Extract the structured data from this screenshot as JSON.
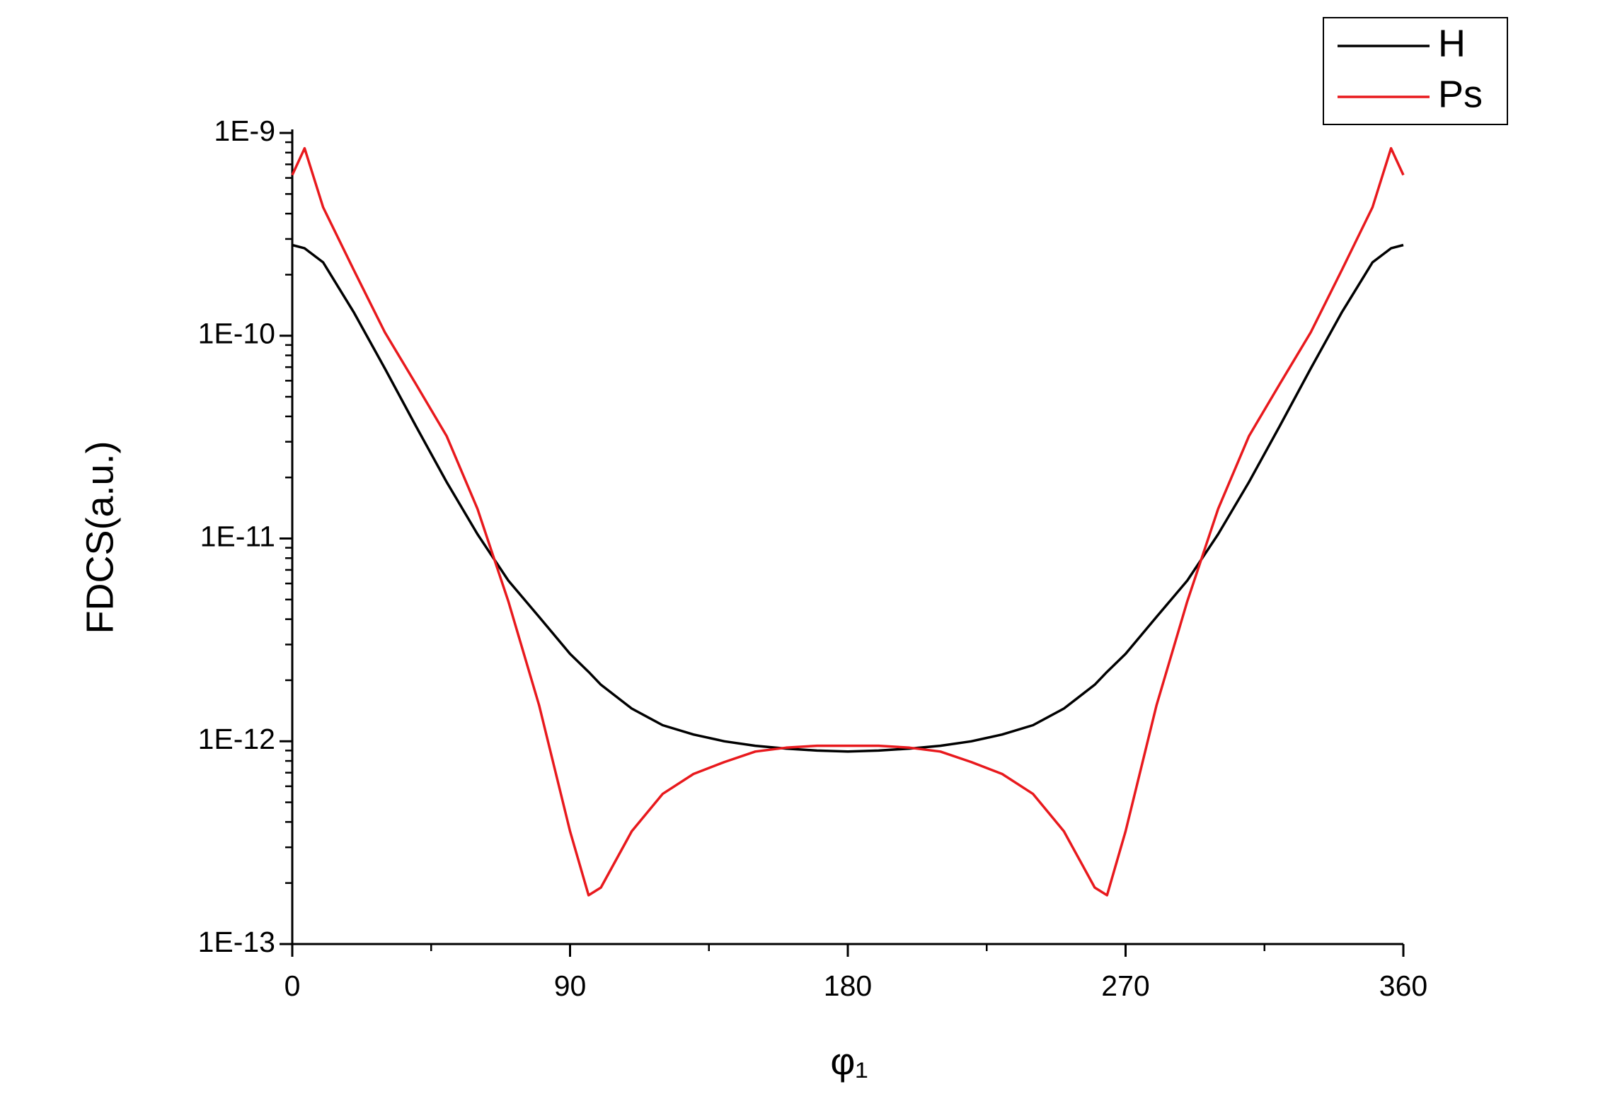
{
  "chart_data": {
    "type": "line",
    "xlabel": "φ₁",
    "ylabel": "FDCS(a.u.)",
    "x": [
      0,
      4,
      10,
      20,
      30,
      40,
      50,
      60,
      70,
      80,
      90,
      96,
      100,
      110,
      120,
      130,
      140,
      150,
      160,
      170,
      180,
      190,
      200,
      210,
      220,
      230,
      240,
      250,
      260,
      264,
      270,
      280,
      290,
      300,
      310,
      320,
      330,
      340,
      350,
      356,
      360
    ],
    "series": [
      {
        "name": "H",
        "color": "#000000",
        "values": [
          2.8e-10,
          2.7e-10,
          2.3e-10,
          1.3e-10,
          6.9e-11,
          3.6e-11,
          1.9e-11,
          1.05e-11,
          6.2e-12,
          4.1e-12,
          2.7e-12,
          2.2e-12,
          1.9e-12,
          1.45e-12,
          1.2e-12,
          1.08e-12,
          1e-12,
          9.5e-13,
          9.2e-13,
          9e-13,
          8.9e-13,
          9e-13,
          9.2e-13,
          9.5e-13,
          1e-12,
          1.08e-12,
          1.2e-12,
          1.45e-12,
          1.9e-12,
          2.2e-12,
          2.7e-12,
          4.1e-12,
          6.2e-12,
          1.05e-11,
          1.9e-11,
          3.6e-11,
          6.9e-11,
          1.3e-10,
          2.3e-10,
          2.7e-10,
          2.8e-10
        ]
      },
      {
        "name": "Ps",
        "color": "#e8191d",
        "values": [
          6.2e-10,
          8.4e-10,
          4.3e-10,
          2.1e-10,
          1.04e-10,
          5.8e-11,
          3.2e-11,
          1.4e-11,
          4.9e-12,
          1.5e-12,
          3.6e-13,
          1.74e-13,
          1.9e-13,
          3.6e-13,
          5.5e-13,
          6.9e-13,
          7.9e-13,
          8.9e-13,
          9.3e-13,
          9.5e-13,
          9.5e-13,
          9.5e-13,
          9.3e-13,
          8.9e-13,
          7.9e-13,
          6.9e-13,
          5.5e-13,
          3.6e-13,
          1.9e-13,
          1.74e-13,
          3.6e-13,
          1.5e-12,
          4.9e-12,
          1.4e-11,
          3.2e-11,
          5.8e-11,
          1.04e-10,
          2.1e-10,
          4.3e-10,
          8.4e-10,
          6.2e-10
        ]
      }
    ],
    "xlim": [
      0,
      360
    ],
    "xticks": [
      0,
      90,
      180,
      270,
      360
    ],
    "ylim": [
      1e-13,
      1e-09
    ],
    "ylog": true,
    "yticks": [
      {
        "value": 1e-13,
        "label": "1E-13"
      },
      {
        "value": 1e-12,
        "label": "1E-12"
      },
      {
        "value": 1e-11,
        "label": "1E-11"
      },
      {
        "value": 1e-10,
        "label": "1E-10"
      },
      {
        "value": 1e-09,
        "label": "1E-9"
      }
    ],
    "legend": "top-right"
  }
}
